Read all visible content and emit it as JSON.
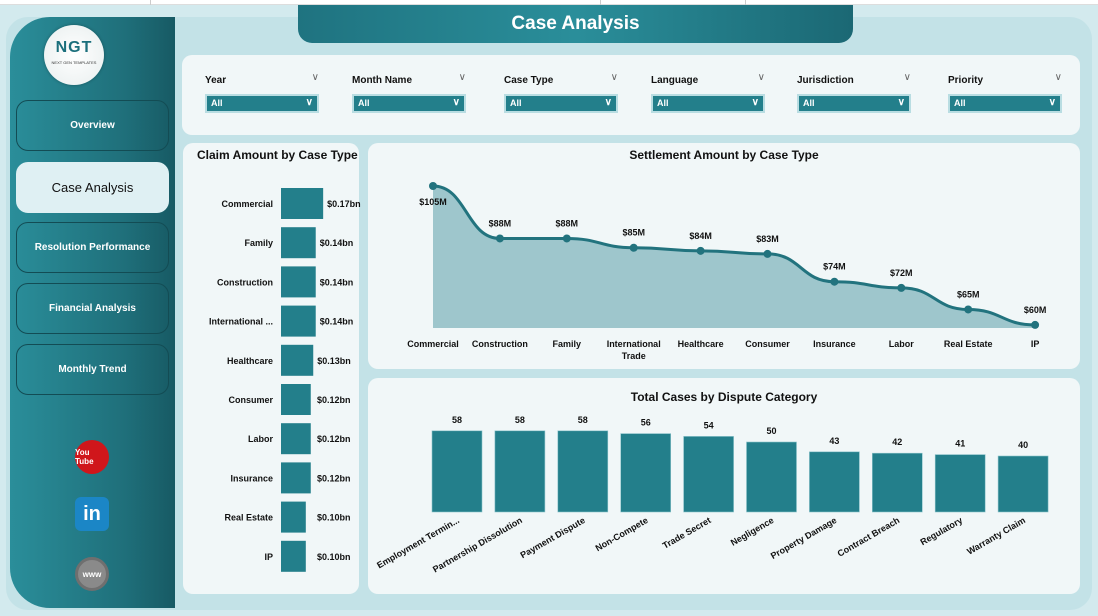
{
  "title": "Case Analysis",
  "logo": {
    "main": "NGT",
    "sub": "NEXT GEN TEMPLATES"
  },
  "nav": [
    {
      "label": "Overview",
      "active": false
    },
    {
      "label": "Case Analysis",
      "active": true
    },
    {
      "label": "Resolution Performance",
      "active": false
    },
    {
      "label": "Financial Analysis",
      "active": false
    },
    {
      "label": "Monthly Trend",
      "active": false
    }
  ],
  "social": [
    {
      "icon": "youtube-icon",
      "text": "You Tube",
      "color": "#d0161b"
    },
    {
      "icon": "linkedin-icon",
      "text": "in",
      "color": "#1b86c6"
    },
    {
      "icon": "globe-www-icon",
      "text": "www",
      "color": "#8a8a8a"
    }
  ],
  "filters": [
    {
      "label": "Year",
      "value": "All"
    },
    {
      "label": "Month Name",
      "value": "All"
    },
    {
      "label": "Case Type",
      "value": "All"
    },
    {
      "label": "Language",
      "value": "All"
    },
    {
      "label": "Jurisdiction",
      "value": "All"
    },
    {
      "label": "Priority",
      "value": "All"
    }
  ],
  "colors": {
    "accent": "#237f8b",
    "area": "#9ec6cc",
    "line": "#22737e"
  },
  "chart_data": [
    {
      "type": "bar",
      "orientation": "horizontal",
      "title": "Claim Amount by Case Type",
      "categories": [
        "Commercial",
        "Family",
        "Construction",
        "International ...",
        "Healthcare",
        "Consumer",
        "Labor",
        "Insurance",
        "Real Estate",
        "IP"
      ],
      "values": [
        0.17,
        0.14,
        0.14,
        0.14,
        0.13,
        0.12,
        0.12,
        0.12,
        0.1,
        0.1
      ],
      "labels": [
        "$0.17bn",
        "$0.14bn",
        "$0.14bn",
        "$0.14bn",
        "$0.13bn",
        "$0.12bn",
        "$0.12bn",
        "$0.12bn",
        "$0.10bn",
        "$0.10bn"
      ],
      "unit": "bn USD",
      "grid": false
    },
    {
      "type": "area",
      "title": "Settlement Amount by Case Type",
      "categories": [
        "Commercial",
        "Construction",
        "Family",
        "International Trade",
        "Healthcare",
        "Consumer",
        "Insurance",
        "Labor",
        "Real Estate",
        "IP"
      ],
      "values": [
        105,
        88,
        88,
        85,
        84,
        83,
        74,
        72,
        65,
        60
      ],
      "labels": [
        "$105M",
        "$88M",
        "$88M",
        "$85M",
        "$84M",
        "$83M",
        "$74M",
        "$72M",
        "$65M",
        "$60M"
      ],
      "unit": "M USD",
      "ylim": [
        59,
        105
      ],
      "grid": false
    },
    {
      "type": "bar",
      "title": "Total Cases by Dispute Category",
      "categories": [
        "Employment Termin...",
        "Partnership Dissolution",
        "Payment Dispute",
        "Non-Compete",
        "Trade Secret",
        "Negligence",
        "Property Damage",
        "Contract Breach",
        "Regulatory",
        "Warranty Claim"
      ],
      "values": [
        58,
        58,
        58,
        56,
        54,
        50,
        43,
        42,
        41,
        40
      ],
      "ylim": [
        0,
        60
      ],
      "grid": false
    }
  ]
}
